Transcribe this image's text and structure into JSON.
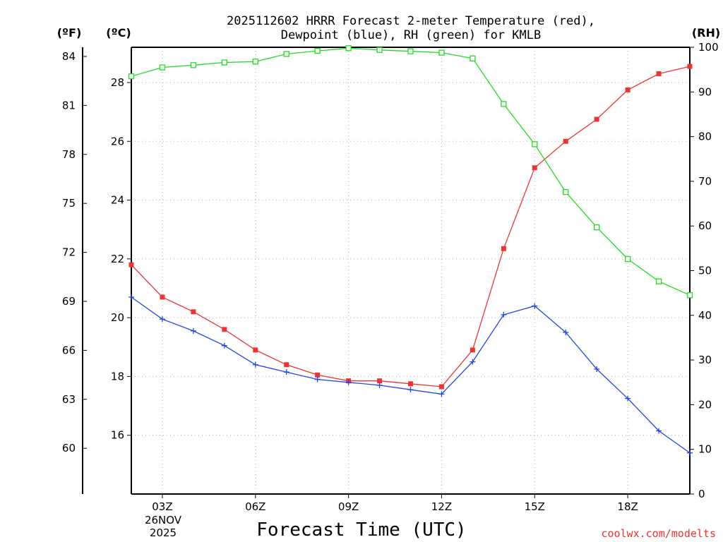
{
  "chart_data": {
    "type": "line",
    "title_line1": "2025112602 HRRR Forecast 2-meter Temperature (red),",
    "title_line2": "Dewpoint (blue), RH (green) for KMLB",
    "xlabel": "Forecast Time (UTC)",
    "left_outer_unit": "(ºF)",
    "left_inner_unit": "(ºC)",
    "right_unit": "(RH)",
    "date_line1": "26NOV",
    "date_line2": "2025",
    "watermark": "coolwx.com/modelts",
    "x_hours": [
      2,
      3,
      4,
      5,
      6,
      7,
      8,
      9,
      10,
      11,
      12,
      13,
      14,
      15,
      16,
      17,
      18,
      19,
      20
    ],
    "x_ticks": [
      {
        "hour": 3,
        "label": "03Z"
      },
      {
        "hour": 6,
        "label": "06Z"
      },
      {
        "hour": 9,
        "label": "09Z"
      },
      {
        "hour": 12,
        "label": "12Z"
      },
      {
        "hour": 15,
        "label": "15Z"
      },
      {
        "hour": 18,
        "label": "18Z"
      }
    ],
    "xlim": [
      2,
      20
    ],
    "celsius_ylim": [
      14.0,
      29.2
    ],
    "celsius_ticks": [
      "16",
      "18",
      "20",
      "22",
      "24",
      "26",
      "28"
    ],
    "fahrenheit_ticks": [
      "60",
      "63",
      "66",
      "69",
      "72",
      "75",
      "78",
      "81",
      "84"
    ],
    "rh_ylim": [
      0,
      100
    ],
    "rh_ticks": [
      "0",
      "10",
      "20",
      "30",
      "40",
      "50",
      "60",
      "70",
      "80",
      "90",
      "100"
    ],
    "series": [
      {
        "name": "Temperature",
        "unit": "C",
        "color": "#ee3333",
        "marker": "filled-square",
        "values": [
          21.8,
          20.7,
          20.2,
          19.6,
          18.9,
          18.4,
          18.05,
          17.85,
          17.85,
          17.75,
          17.65,
          18.9,
          22.35,
          25.1,
          26.0,
          26.75,
          27.75,
          28.3,
          28.55
        ]
      },
      {
        "name": "Dewpoint",
        "unit": "C",
        "color": "#2244ee",
        "marker": "plus",
        "values": [
          20.7,
          19.95,
          19.55,
          19.05,
          18.4,
          18.15,
          17.9,
          17.8,
          17.7,
          17.55,
          17.4,
          18.5,
          20.1,
          20.4,
          19.5,
          18.25,
          17.25,
          16.15,
          15.4
        ]
      },
      {
        "name": "RH",
        "unit": "%",
        "color": "#22dd22",
        "marker": "open-square",
        "values": [
          93.5,
          95.5,
          96.0,
          96.6,
          96.8,
          98.5,
          99.2,
          99.8,
          99.4,
          99.1,
          98.8,
          97.5,
          87.3,
          78.3,
          67.6,
          59.7,
          52.6,
          47.6,
          44.5
        ]
      }
    ]
  }
}
